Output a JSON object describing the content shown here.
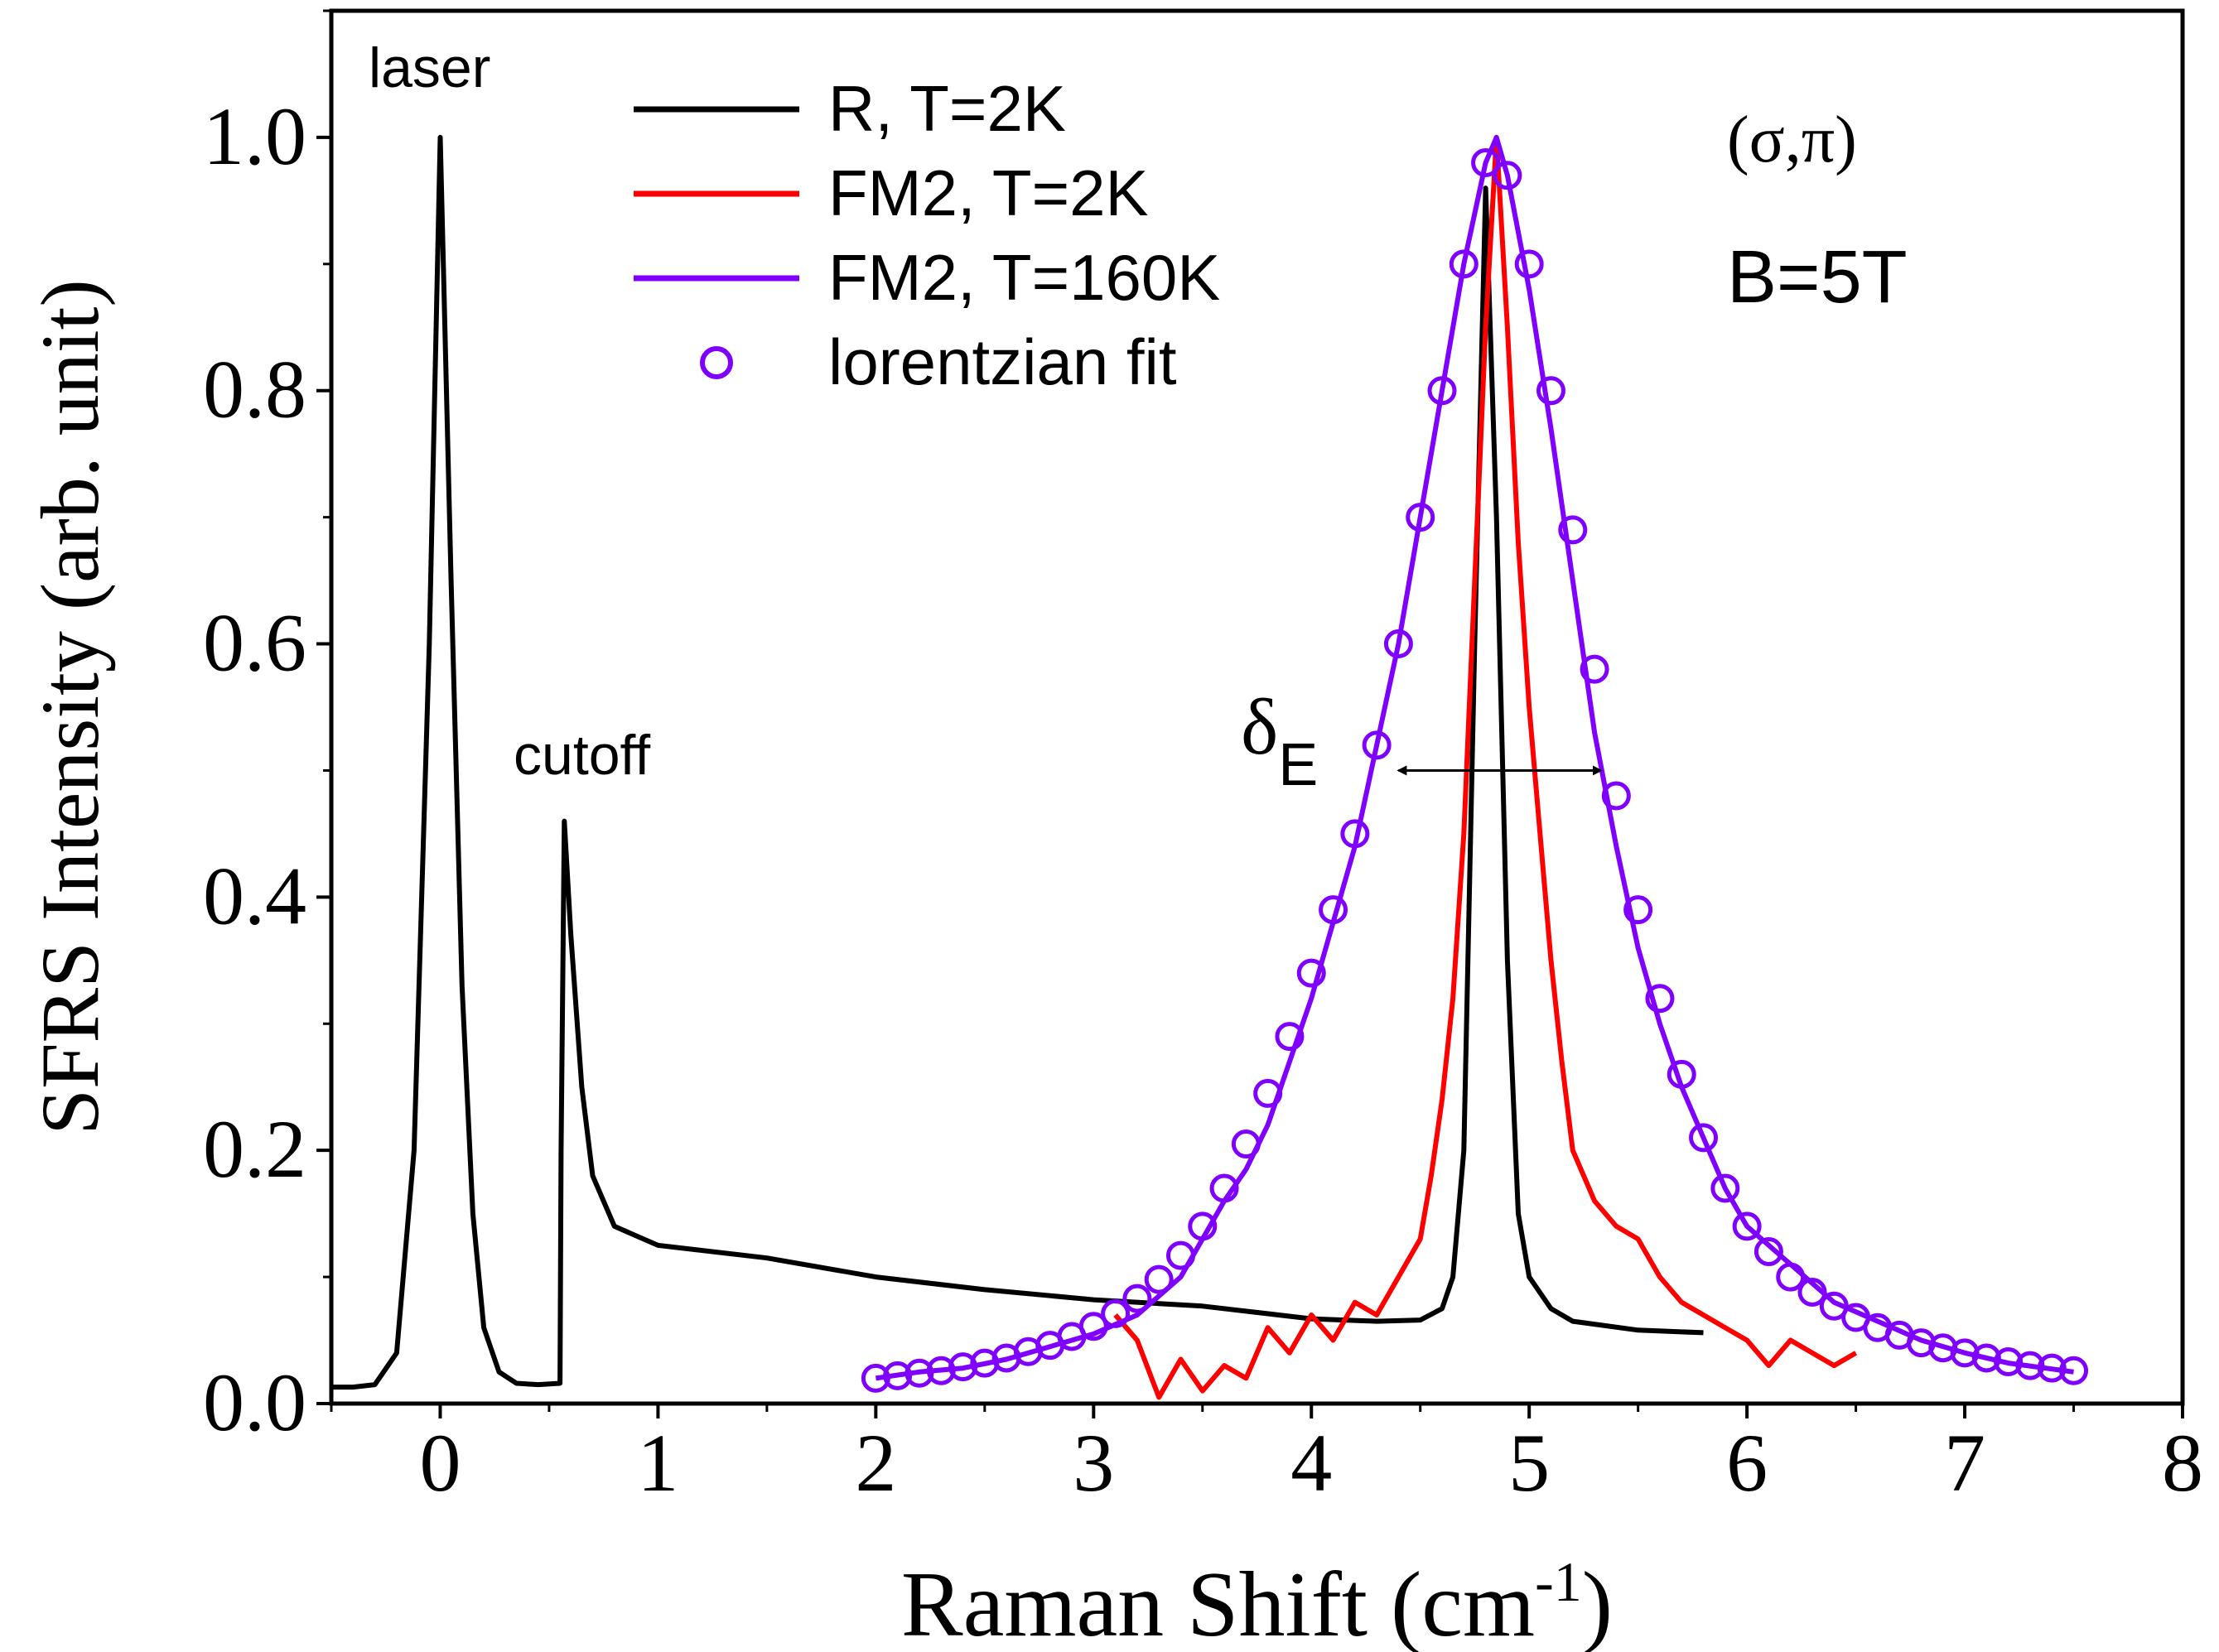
{
  "chart_data": {
    "type": "line",
    "xlabel": "Raman Shift (cm",
    "xlabel_sup": "-1",
    "xlabel_end": ")",
    "ylabel": "SFRS Intensity (arb. unit)",
    "xlim": [
      -0.5,
      8
    ],
    "ylim": [
      0,
      1.1
    ],
    "xticks": [
      0,
      1,
      2,
      3,
      4,
      5,
      6,
      7,
      8
    ],
    "yticks": [
      "0.0",
      "0.2",
      "0.4",
      "0.6",
      "0.8",
      "1.0"
    ],
    "grid": false,
    "legend_position": "top-center",
    "series": [
      {
        "name": "R, T=2K",
        "color": "#000000",
        "style": "line",
        "points": [
          [
            -0.5,
            0.013
          ],
          [
            -0.4,
            0.013
          ],
          [
            -0.3,
            0.015
          ],
          [
            -0.2,
            0.04
          ],
          [
            -0.12,
            0.2
          ],
          [
            -0.05,
            0.6
          ],
          [
            0,
            1.0
          ],
          [
            0.05,
            0.65
          ],
          [
            0.1,
            0.33
          ],
          [
            0.15,
            0.15
          ],
          [
            0.2,
            0.06
          ],
          [
            0.27,
            0.025
          ],
          [
            0.35,
            0.016
          ],
          [
            0.45,
            0.015
          ],
          [
            0.55,
            0.016
          ],
          [
            0.555,
            0.2
          ],
          [
            0.57,
            0.46
          ],
          [
            0.6,
            0.37
          ],
          [
            0.65,
            0.25
          ],
          [
            0.7,
            0.18
          ],
          [
            0.8,
            0.14
          ],
          [
            1.0,
            0.125
          ],
          [
            1.5,
            0.115
          ],
          [
            2.0,
            0.1
          ],
          [
            2.5,
            0.09
          ],
          [
            3.0,
            0.082
          ],
          [
            3.5,
            0.077
          ],
          [
            4.0,
            0.067
          ],
          [
            4.3,
            0.065
          ],
          [
            4.5,
            0.066
          ],
          [
            4.6,
            0.075
          ],
          [
            4.65,
            0.1
          ],
          [
            4.7,
            0.2
          ],
          [
            4.75,
            0.6
          ],
          [
            4.8,
            0.96
          ],
          [
            4.85,
            0.7
          ],
          [
            4.9,
            0.35
          ],
          [
            4.95,
            0.15
          ],
          [
            5.0,
            0.1
          ],
          [
            5.1,
            0.075
          ],
          [
            5.2,
            0.065
          ],
          [
            5.5,
            0.058
          ],
          [
            5.8,
            0.056
          ]
        ]
      },
      {
        "name": "FM2, T=2K",
        "color": "#ff0000",
        "style": "line",
        "points": [
          [
            3.1,
            0.07
          ],
          [
            3.2,
            0.05
          ],
          [
            3.3,
            0.005
          ],
          [
            3.4,
            0.035
          ],
          [
            3.5,
            0.01
          ],
          [
            3.6,
            0.03
          ],
          [
            3.7,
            0.02
          ],
          [
            3.8,
            0.06
          ],
          [
            3.9,
            0.04
          ],
          [
            4.0,
            0.07
          ],
          [
            4.1,
            0.05
          ],
          [
            4.2,
            0.08
          ],
          [
            4.3,
            0.07
          ],
          [
            4.4,
            0.1
          ],
          [
            4.5,
            0.13
          ],
          [
            4.55,
            0.18
          ],
          [
            4.6,
            0.24
          ],
          [
            4.65,
            0.32
          ],
          [
            4.7,
            0.45
          ],
          [
            4.75,
            0.65
          ],
          [
            4.8,
            0.85
          ],
          [
            4.85,
            1.0
          ],
          [
            4.9,
            0.85
          ],
          [
            4.95,
            0.68
          ],
          [
            5.0,
            0.55
          ],
          [
            5.05,
            0.45
          ],
          [
            5.1,
            0.35
          ],
          [
            5.15,
            0.27
          ],
          [
            5.2,
            0.2
          ],
          [
            5.3,
            0.16
          ],
          [
            5.4,
            0.14
          ],
          [
            5.5,
            0.13
          ],
          [
            5.6,
            0.1
          ],
          [
            5.7,
            0.08
          ],
          [
            5.8,
            0.07
          ],
          [
            5.9,
            0.06
          ],
          [
            6.0,
            0.05
          ],
          [
            6.1,
            0.03
          ],
          [
            6.2,
            0.05
          ],
          [
            6.3,
            0.04
          ],
          [
            6.4,
            0.03
          ],
          [
            6.5,
            0.04
          ]
        ]
      },
      {
        "name": "FM2, T=160K",
        "color": "#7f00ff",
        "style": "line",
        "points": [
          [
            2.0,
            0.02
          ],
          [
            2.2,
            0.025
          ],
          [
            2.4,
            0.028
          ],
          [
            2.6,
            0.035
          ],
          [
            2.8,
            0.045
          ],
          [
            3.0,
            0.055
          ],
          [
            3.2,
            0.07
          ],
          [
            3.4,
            0.1
          ],
          [
            3.5,
            0.13
          ],
          [
            3.6,
            0.16
          ],
          [
            3.7,
            0.185
          ],
          [
            3.8,
            0.22
          ],
          [
            3.9,
            0.27
          ],
          [
            4.0,
            0.32
          ],
          [
            4.1,
            0.38
          ],
          [
            4.2,
            0.44
          ],
          [
            4.3,
            0.52
          ],
          [
            4.4,
            0.6
          ],
          [
            4.5,
            0.7
          ],
          [
            4.6,
            0.8
          ],
          [
            4.7,
            0.9
          ],
          [
            4.8,
            0.98
          ],
          [
            4.85,
            1.0
          ],
          [
            4.9,
            0.97
          ],
          [
            5.0,
            0.88
          ],
          [
            5.1,
            0.77
          ],
          [
            5.2,
            0.65
          ],
          [
            5.3,
            0.53
          ],
          [
            5.4,
            0.44
          ],
          [
            5.5,
            0.36
          ],
          [
            5.6,
            0.3
          ],
          [
            5.7,
            0.25
          ],
          [
            5.8,
            0.21
          ],
          [
            5.9,
            0.17
          ],
          [
            6.0,
            0.14
          ],
          [
            6.2,
            0.11
          ],
          [
            6.4,
            0.08
          ],
          [
            6.6,
            0.065
          ],
          [
            6.8,
            0.05
          ],
          [
            7.0,
            0.04
          ],
          [
            7.2,
            0.032
          ],
          [
            7.5,
            0.025
          ]
        ]
      },
      {
        "name": "lorentzian fit",
        "color": "#7f00ff",
        "style": "circle",
        "points": [
          [
            2.0,
            0.02
          ],
          [
            2.1,
            0.022
          ],
          [
            2.2,
            0.024
          ],
          [
            2.3,
            0.026
          ],
          [
            2.4,
            0.029
          ],
          [
            2.5,
            0.032
          ],
          [
            2.6,
            0.036
          ],
          [
            2.7,
            0.041
          ],
          [
            2.8,
            0.046
          ],
          [
            2.9,
            0.053
          ],
          [
            3.0,
            0.061
          ],
          [
            3.1,
            0.071
          ],
          [
            3.2,
            0.083
          ],
          [
            3.3,
            0.098
          ],
          [
            3.4,
            0.117
          ],
          [
            3.5,
            0.14
          ],
          [
            3.6,
            0.17
          ],
          [
            3.7,
            0.205
          ],
          [
            3.8,
            0.245
          ],
          [
            3.9,
            0.29
          ],
          [
            4.0,
            0.34
          ],
          [
            4.1,
            0.39
          ],
          [
            4.2,
            0.45
          ],
          [
            4.3,
            0.52
          ],
          [
            4.4,
            0.6
          ],
          [
            4.5,
            0.7
          ],
          [
            4.6,
            0.8
          ],
          [
            4.7,
            0.9
          ],
          [
            4.8,
            0.98
          ],
          [
            4.9,
            0.97
          ],
          [
            5.0,
            0.9
          ],
          [
            5.1,
            0.8
          ],
          [
            5.2,
            0.69
          ],
          [
            5.3,
            0.58
          ],
          [
            5.4,
            0.48
          ],
          [
            5.5,
            0.39
          ],
          [
            5.6,
            0.32
          ],
          [
            5.7,
            0.26
          ],
          [
            5.8,
            0.21
          ],
          [
            5.9,
            0.17
          ],
          [
            6.0,
            0.14
          ],
          [
            6.1,
            0.12
          ],
          [
            6.2,
            0.1
          ],
          [
            6.3,
            0.088
          ],
          [
            6.4,
            0.077
          ],
          [
            6.5,
            0.068
          ],
          [
            6.6,
            0.06
          ],
          [
            6.7,
            0.054
          ],
          [
            6.8,
            0.048
          ],
          [
            6.9,
            0.044
          ],
          [
            7.0,
            0.04
          ],
          [
            7.1,
            0.036
          ],
          [
            7.2,
            0.033
          ],
          [
            7.3,
            0.03
          ],
          [
            7.4,
            0.028
          ],
          [
            7.5,
            0.026
          ]
        ]
      }
    ],
    "annotations": {
      "laser": "laser",
      "cutoff": "cutoff",
      "polarization": "(σ,π)",
      "field": "B=5T",
      "width_symbol": "δ",
      "width_subscript": "E"
    },
    "width_arrow": {
      "x_start": 4.4,
      "x_end": 5.33,
      "y": 0.5
    }
  }
}
